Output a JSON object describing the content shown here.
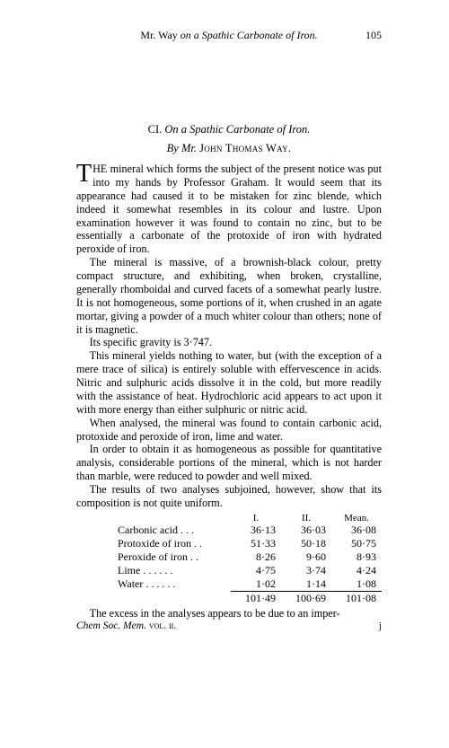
{
  "page": {
    "running_head_author": "Mr. Way",
    "running_head_title": "on a Spathic Carbonate of Iron.",
    "page_number": "105",
    "article_number": "CI.",
    "article_title": "On a Spathic Carbonate of Iron.",
    "byline_prefix": "By Mr.",
    "byline_author": "John Thomas Way."
  },
  "paragraphs": {
    "p1_first": "HE mineral which forms the subject of the present notice was put into my hands by Professor Graham. It would seem that its appearance had caused it to be mistaken for zinc blende, which indeed it somewhat resembles in its colour and lustre. Upon examination however it was found to contain no zinc, but to be essentially a carbonate of the protoxide of iron with hydrated peroxide of iron.",
    "p2": "The mineral is massive, of a brownish-black colour, pretty compact structure, and exhibiting, when broken, crystalline, generally rhomboidal and curved facets of a somewhat pearly lustre. It is not homogeneous, some portions of it, when crushed in an agate mortar, giving a powder of a much whiter colour than others; none of it is magnetic.",
    "p3": "Its specific gravity is 3·747.",
    "p4": "This mineral yields nothing to water, but (with the exception of a mere trace of silica) is entirely soluble with effervescence in acids. Nitric and sulphuric acids dissolve it in the cold, but more readily with the assistance of heat. Hydrochloric acid appears to act upon it with more energy than either sulphuric or nitric acid.",
    "p5": "When analysed, the mineral was found to contain carbonic acid, protoxide and peroxide of iron, lime and water.",
    "p6": "In order to obtain it as homogeneous as possible for quantitative analysis, considerable portions of the mineral, which is not harder than marble, were reduced to powder and well mixed.",
    "p7": "The results of two analyses subjoined, however, show that its composition is not quite uniform."
  },
  "table": {
    "headers": {
      "c1": "I.",
      "c2": "II.",
      "c3": "Mean."
    },
    "rows": [
      {
        "label": "Carbonic acid  .   .   .",
        "c1": "36·13",
        "c2": "36·03",
        "c3": "36·08"
      },
      {
        "label": "Protoxide of iron   .   .",
        "c1": "51·33",
        "c2": "50·18",
        "c3": "50·75"
      },
      {
        "label": "Peroxide of iron   .   .",
        "c1": "8·26",
        "c2": "9·60",
        "c3": "8·93"
      },
      {
        "label": "Lime .   .   .   .   .   .",
        "c1": "4·75",
        "c2": "3·74",
        "c3": "4·24"
      },
      {
        "label": "Water .   .   .   .   .   .",
        "c1": "1·02",
        "c2": "1·14",
        "c3": "1·08"
      }
    ],
    "totals": {
      "c1": "101·49",
      "c2": "100·69",
      "c3": "101·08"
    }
  },
  "footer": {
    "p8": "The excess in the analyses appears to be due to an imper-",
    "imprint": "Chem Soc. Mem.",
    "vol": "vol. ii.",
    "sig": "j"
  }
}
